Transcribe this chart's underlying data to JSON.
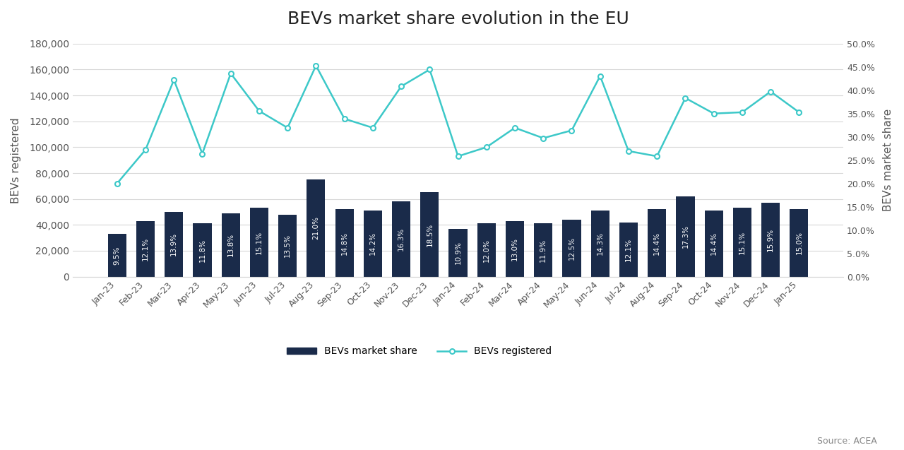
{
  "categories": [
    "Jan-23",
    "Feb-23",
    "Mar-23",
    "Apr-23",
    "May-23",
    "Jun-23",
    "Jul-23",
    "Aug-23",
    "Sep-23",
    "Oct-23",
    "Nov-23",
    "Dec-23",
    "Jan-24",
    "Feb-24",
    "Mar-24",
    "Apr-24",
    "May-24",
    "Jun-24",
    "Jul-24",
    "Aug-24",
    "Sep-24",
    "Oct-24",
    "Nov-24",
    "Dec-24",
    "Jan-25"
  ],
  "bar_values": [
    33000,
    43000,
    50000,
    41000,
    49000,
    53000,
    48000,
    75000,
    52000,
    51000,
    58000,
    65000,
    37000,
    41000,
    43000,
    41000,
    44000,
    51000,
    42000,
    52000,
    62000,
    51000,
    53000,
    57000,
    52000
  ],
  "bar_labels": [
    "9.5%",
    "12.1%",
    "13.9%",
    "11.8%",
    "13.8%",
    "15.1%",
    "13.5%",
    "21.0%",
    "14.8%",
    "14.2%",
    "16.3%",
    "18.5%",
    "10.9%",
    "12.0%",
    "13.0%",
    "11.9%",
    "12.5%",
    "14.3%",
    "12.1%",
    "14.4%",
    "17.3%",
    "14.4%",
    "15.1%",
    "15.9%",
    "15.0%"
  ],
  "line_values": [
    72000,
    98000,
    152000,
    95000,
    157000,
    128000,
    115000,
    163000,
    122000,
    115000,
    147000,
    160000,
    93000,
    100000,
    115000,
    107000,
    113000,
    155000,
    97000,
    93000,
    138000,
    126000,
    127000,
    143000,
    127000
  ],
  "bar_color": "#1a2b4a",
  "line_color": "#3cc8c8",
  "title": "BEVs market share evolution in the EU",
  "ylabel_left": "BEVs registered",
  "ylabel_right": "BEVs market share",
  "ylim": [
    0,
    180000
  ],
  "yticks_left": [
    0,
    20000,
    40000,
    60000,
    80000,
    100000,
    120000,
    140000,
    160000,
    180000
  ],
  "yticks_right_pct": [
    0.0,
    0.05,
    0.1,
    0.15,
    0.2,
    0.25,
    0.3,
    0.35,
    0.4,
    0.45,
    0.5
  ],
  "source_text": "Source: ACEA",
  "legend_label_bar": "BEVs market share",
  "legend_label_line": "BEVs registered",
  "background_color": "#ffffff",
  "title_fontsize": 18,
  "label_fontsize": 7.5,
  "grid_color": "#d8d8d8"
}
